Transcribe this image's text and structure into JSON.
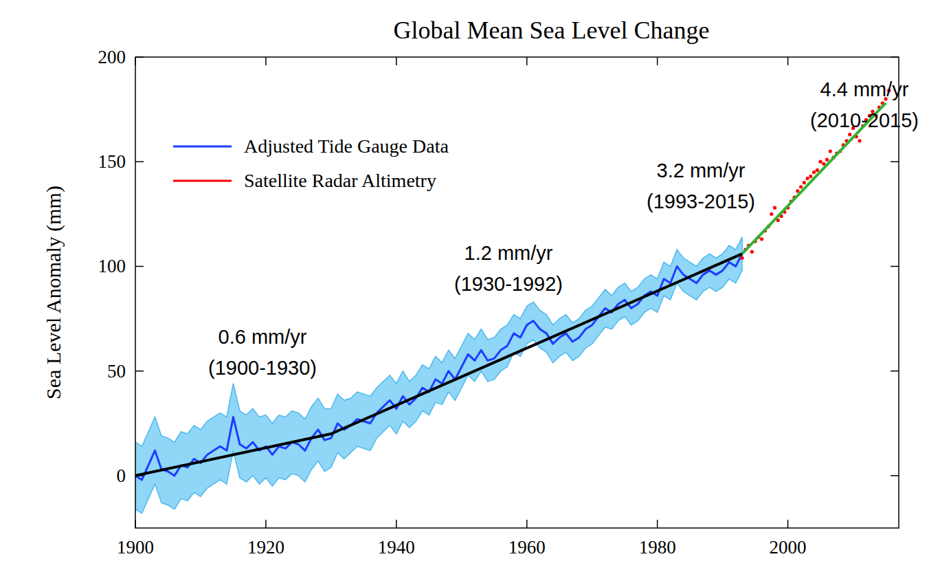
{
  "chart_data": {
    "type": "line",
    "title": "Global Mean Sea Level Change",
    "y_label": "Sea Level Anomaly (mm)",
    "xlim": [
      1900,
      2017
    ],
    "ylim": [
      -25,
      200
    ],
    "xticks": [
      1900,
      1920,
      1940,
      1960,
      1980,
      2000
    ],
    "yticks": [
      0,
      50,
      100,
      150,
      200
    ],
    "grid": false,
    "legend": "upper left",
    "series": [
      {
        "name": "Adjusted Tide Gauge Data",
        "color": "#1f3cff",
        "type": "line",
        "line_style": "solid",
        "x": [
          1900,
          1901,
          1902,
          1903,
          1904,
          1905,
          1906,
          1907,
          1908,
          1909,
          1910,
          1911,
          1912,
          1913,
          1914,
          1915,
          1916,
          1917,
          1918,
          1919,
          1920,
          1921,
          1922,
          1923,
          1924,
          1925,
          1926,
          1927,
          1928,
          1929,
          1930,
          1931,
          1932,
          1933,
          1934,
          1935,
          1936,
          1937,
          1938,
          1939,
          1940,
          1941,
          1942,
          1943,
          1944,
          1945,
          1946,
          1947,
          1948,
          1949,
          1950,
          1951,
          1952,
          1953,
          1954,
          1955,
          1956,
          1957,
          1958,
          1959,
          1960,
          1961,
          1962,
          1963,
          1964,
          1965,
          1966,
          1967,
          1968,
          1969,
          1970,
          1971,
          1972,
          1973,
          1974,
          1975,
          1976,
          1977,
          1978,
          1979,
          1980,
          1981,
          1982,
          1983,
          1984,
          1985,
          1986,
          1987,
          1988,
          1989,
          1990,
          1991,
          1992,
          1993
        ],
        "values": [
          0,
          -2,
          5,
          12,
          3,
          2,
          0,
          5,
          4,
          8,
          6,
          10,
          12,
          14,
          12,
          28,
          15,
          13,
          16,
          12,
          14,
          10,
          14,
          13,
          16,
          15,
          12,
          18,
          22,
          17,
          18,
          25,
          22,
          24,
          27,
          26,
          25,
          30,
          33,
          36,
          32,
          38,
          34,
          37,
          42,
          40,
          46,
          44,
          50,
          46,
          52,
          58,
          55,
          60,
          55,
          56,
          60,
          62,
          68,
          66,
          72,
          74,
          70,
          68,
          63,
          66,
          68,
          64,
          66,
          70,
          72,
          76,
          80,
          78,
          82,
          84,
          80,
          82,
          86,
          88,
          86,
          94,
          92,
          100,
          96,
          94,
          92,
          96,
          98,
          96,
          98,
          102,
          100,
          106
        ],
        "error": [
          16,
          16,
          16,
          16,
          16,
          16,
          16,
          16,
          16,
          16,
          16,
          16,
          16,
          16,
          16,
          16,
          16,
          16,
          16,
          16,
          15,
          15,
          15,
          15,
          15,
          15,
          15,
          15,
          15,
          15,
          14,
          14,
          14,
          13,
          13,
          13,
          13,
          12,
          12,
          12,
          12,
          12,
          11,
          11,
          11,
          11,
          11,
          10,
          10,
          10,
          10,
          10,
          10,
          10,
          10,
          10,
          10,
          10,
          9,
          9,
          9,
          9,
          9,
          9,
          9,
          9,
          9,
          9,
          9,
          9,
          9,
          9,
          9,
          8,
          8,
          8,
          8,
          8,
          8,
          8,
          8,
          8,
          8,
          8,
          8,
          8,
          8,
          8,
          8,
          8,
          8,
          8,
          8,
          8
        ]
      },
      {
        "name": "Satellite Radar Altimetry",
        "color": "#ff0000",
        "type": "scatter",
        "marker": "dot",
        "x": [
          1993.0,
          1993.5,
          1994.0,
          1994.5,
          1995.0,
          1995.5,
          1996.0,
          1996.5,
          1997.0,
          1997.5,
          1998.0,
          1998.5,
          1999.0,
          1999.5,
          2000.0,
          2000.5,
          2001.0,
          2001.5,
          2002.0,
          2002.5,
          2003.0,
          2003.5,
          2004.0,
          2004.5,
          2005.0,
          2005.5,
          2006.0,
          2006.5,
          2007.0,
          2007.5,
          2008.0,
          2008.5,
          2009.0,
          2009.5,
          2010.0,
          2010.5,
          2011.0,
          2011.5,
          2012.0,
          2012.5,
          2013.0,
          2013.5,
          2014.0,
          2014.5,
          2015.0,
          2015.5
        ],
        "values": [
          104,
          108,
          110,
          107,
          112,
          114,
          113,
          117,
          119,
          125,
          128,
          122,
          124,
          126,
          128,
          131,
          133,
          136,
          138,
          140,
          142,
          143,
          145,
          146,
          150,
          149,
          151,
          155,
          152,
          154,
          155,
          158,
          160,
          163,
          166,
          162,
          160,
          167,
          170,
          172,
          174,
          172,
          176,
          178,
          180,
          184
        ]
      }
    ],
    "trend_lines": [
      {
        "color": "#000000",
        "x": [
          1900,
          1930,
          1993
        ],
        "values": [
          0,
          20,
          106
        ]
      },
      {
        "color": "#33b233",
        "x": [
          1993,
          2015
        ],
        "values": [
          106,
          178
        ]
      }
    ],
    "annotations": [
      [
        "0.6 mm/yr",
        "(1900-1930)"
      ],
      [
        "1.2 mm/yr",
        "(1930-1992)"
      ],
      [
        "3.2 mm/yr",
        "(1993-2015)"
      ],
      [
        "4.4 mm/yr",
        "(2010-2015)"
      ]
    ]
  }
}
